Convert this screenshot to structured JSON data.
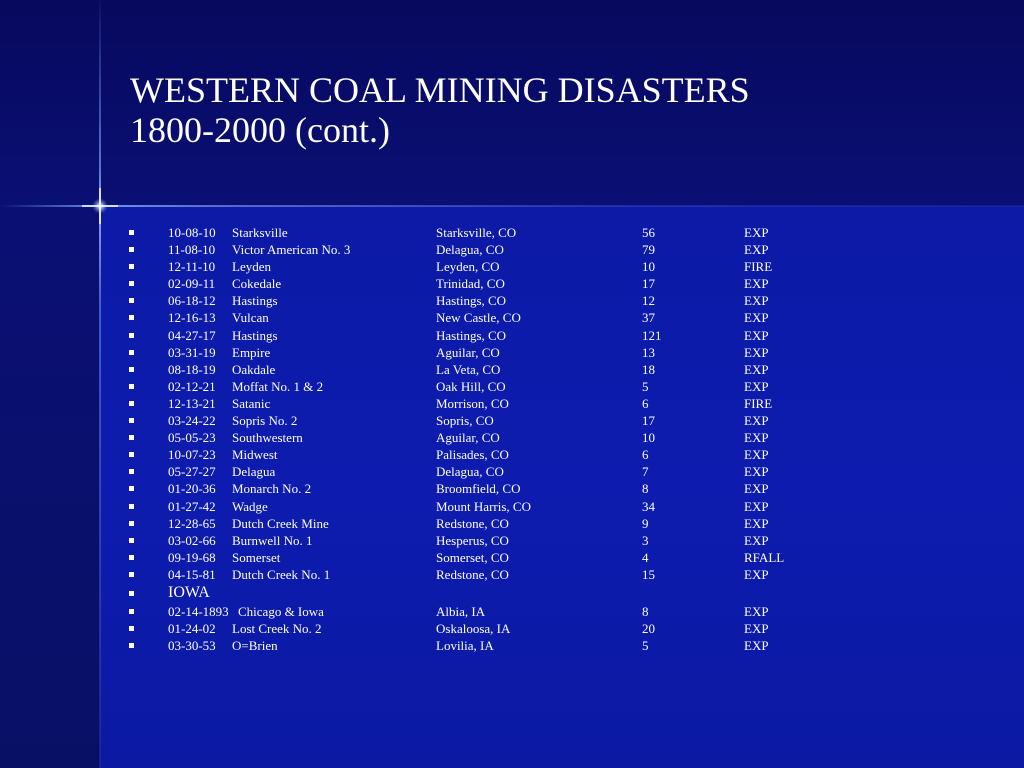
{
  "slide": {
    "title_line1": "WESTERN COAL MINING DISASTERS",
    "title_line2": "1800-2000 (cont.)",
    "colors": {
      "background": "#0b1a9c",
      "title_area": "#07095e",
      "text": "#ffffff"
    }
  },
  "colorado": [
    {
      "date": "10-08-10",
      "mine": "Starksville",
      "location": "Starksville, CO",
      "killed": "56",
      "cause": "EXP"
    },
    {
      "date": "11-08-10",
      "mine": "Victor American No. 3",
      "location": "Delagua, CO",
      "killed": "79",
      "cause": "EXP"
    },
    {
      "date": "12-11-10",
      "mine": "Leyden",
      "location": "Leyden, CO",
      "killed": "10",
      "cause": "FIRE"
    },
    {
      "date": "02-09-11",
      "mine": "Cokedale",
      "location": "Trinidad, CO",
      "killed": "17",
      "cause": "EXP"
    },
    {
      "date": "06-18-12",
      "mine": "Hastings",
      "location": "Hastings, CO",
      "killed": "12",
      "cause": "EXP"
    },
    {
      "date": "12-16-13",
      "mine": "Vulcan",
      "location": "New Castle, CO",
      "killed": "37",
      "cause": "EXP"
    },
    {
      "date": "04-27-17",
      "mine": "Hastings",
      "location": "Hastings, CO",
      "killed": "121",
      "cause": "EXP"
    },
    {
      "date": "03-31-19",
      "mine": "Empire",
      "location": "Aguilar, CO",
      "killed": "13",
      "cause": "EXP"
    },
    {
      "date": "08-18-19",
      "mine": "Oakdale",
      "location": "La Veta, CO",
      "killed": "18",
      "cause": "EXP"
    },
    {
      "date": "02-12-21",
      "mine": "Moffat No. 1 & 2",
      "location": "Oak Hill, CO",
      "killed": "5",
      "cause": "EXP"
    },
    {
      "date": "12-13-21",
      "mine": "Satanic",
      "location": "Morrison, CO",
      "killed": "6",
      "cause": "FIRE"
    },
    {
      "date": "03-24-22",
      "mine": "Sopris No. 2",
      "location": "Sopris, CO",
      "killed": "17",
      "cause": "EXP"
    },
    {
      "date": "05-05-23",
      "mine": "Southwestern",
      "location": "Aguilar, CO",
      "killed": "10",
      "cause": "EXP"
    },
    {
      "date": "10-07-23",
      "mine": "Midwest",
      "location": "Palisades, CO",
      "killed": "6",
      "cause": "EXP"
    },
    {
      "date": "05-27-27",
      "mine": "Delagua",
      "location": "Delagua, CO",
      "killed": "7",
      "cause": "EXP"
    },
    {
      "date": "01-20-36",
      "mine": "Monarch No. 2",
      "location": "Broomfield, CO",
      "killed": "8",
      "cause": "EXP"
    },
    {
      "date": "01-27-42",
      "mine": "Wadge",
      "location": "Mount Harris, CO",
      "killed": "34",
      "cause": "EXP"
    },
    {
      "date": "12-28-65",
      "mine": "Dutch Creek Mine",
      "location": "Redstone, CO",
      "killed": "9",
      "cause": "EXP"
    },
    {
      "date": "03-02-66",
      "mine": "Burnwell No. 1",
      "location": "Hesperus, CO",
      "killed": "3",
      "cause": "EXP"
    },
    {
      "date": "09-19-68",
      "mine": "Somerset",
      "location": "Somerset, CO",
      "killed": "4",
      "cause": "RFALL"
    },
    {
      "date": "04-15-81",
      "mine": "Dutch Creek No. 1",
      "location": "Redstone, CO",
      "killed": "15",
      "cause": "EXP"
    }
  ],
  "iowa_heading": "IOWA",
  "iowa": [
    {
      "date": "02-14-1893",
      "mine": "Chicago & Iowa",
      "location": "Albia, IA",
      "killed": "8",
      "cause": "EXP"
    },
    {
      "date": "01-24-02",
      "mine": "Lost Creek No. 2",
      "location": "Oskaloosa, IA",
      "killed": "20",
      "cause": "EXP"
    },
    {
      "date": "03-30-53",
      "mine": "O=Brien",
      "location": "Lovilia, IA",
      "killed": "5",
      "cause": "EXP"
    }
  ]
}
